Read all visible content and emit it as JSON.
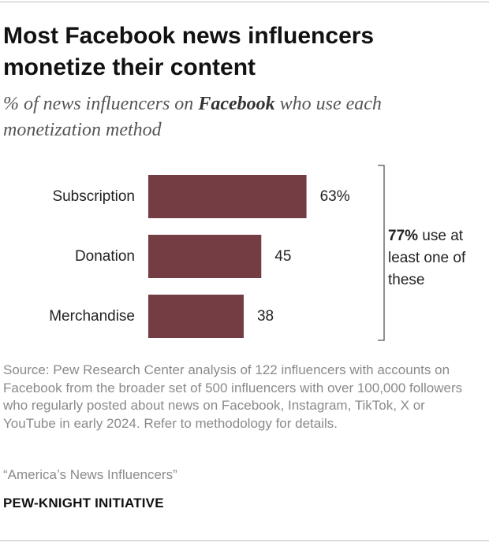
{
  "title": "Most Facebook news influencers monetize their content",
  "subtitle": {
    "before": "% of news influencers on ",
    "emphasis": "Facebook",
    "after": " who use each monetization method"
  },
  "chart_data": {
    "type": "bar",
    "orientation": "horizontal",
    "categories": [
      "Subscription",
      "Donation",
      "Merchandise"
    ],
    "values": [
      63,
      45,
      38
    ],
    "value_labels": [
      "63%",
      "45",
      "38"
    ],
    "xlim": [
      0,
      100
    ],
    "bar_color": "#743c43",
    "annotation": {
      "value_label": "77%",
      "text": " use at least one of these"
    }
  },
  "source": "Source: Pew Research Center analysis of 122 influencers with accounts on Facebook from the broader set of 500 influencers with over 100,000 followers who regularly posted about news on Facebook, Instagram, TikTok, X or YouTube in early 2024. Refer to methodology for details.",
  "report": "“America’s News Influencers”",
  "brand": "PEW-KNIGHT INITIATIVE",
  "colors": {
    "bar": "#743c43",
    "rule": "#bdbdbd",
    "source_text": "#8a8a8a"
  }
}
